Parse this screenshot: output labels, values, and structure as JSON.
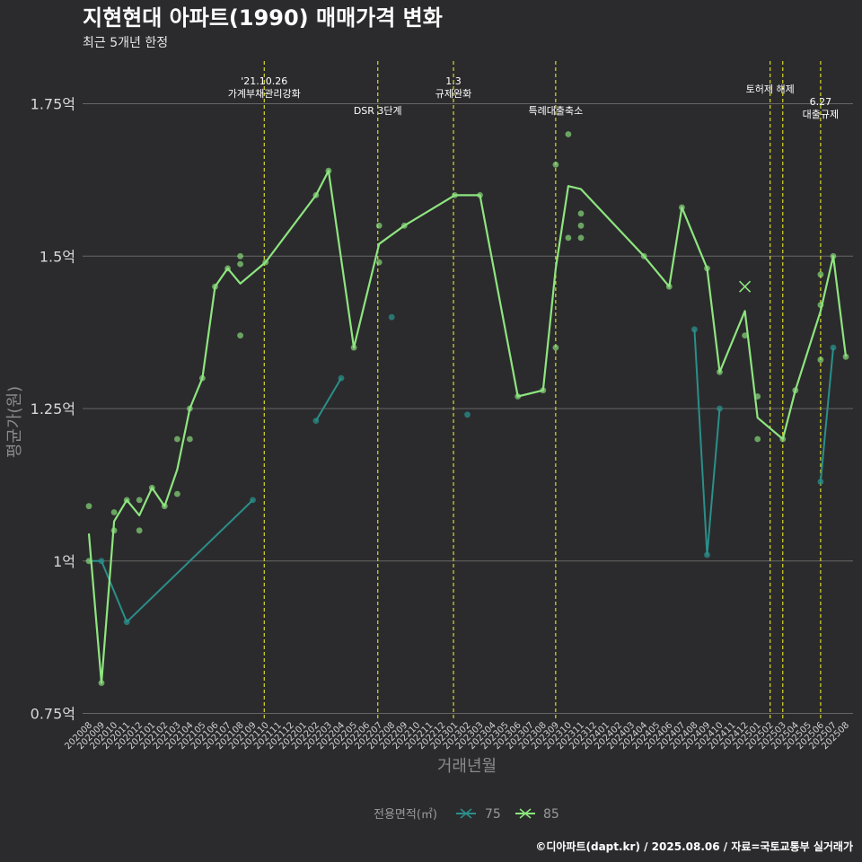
{
  "chart_data": {
    "type": "line",
    "title": "지현현대 아파트(1990) 매매가격 변화",
    "subtitle": "최근 5개년 한정",
    "xlabel": "거래년월",
    "ylabel": "평균가(원)",
    "ylim": [
      0.75,
      1.82
    ],
    "yticks": [
      0.75,
      1.0,
      1.25,
      1.5,
      1.75
    ],
    "ytick_labels": [
      "0.75억",
      "1억",
      "1.25억",
      "1.5억",
      "1.75억"
    ],
    "categories": [
      "202008",
      "202009",
      "202010",
      "202011",
      "202012",
      "202101",
      "202102",
      "202103",
      "202104",
      "202105",
      "202106",
      "202107",
      "202108",
      "202109",
      "202110",
      "202111",
      "202112",
      "202201",
      "202202",
      "202203",
      "202204",
      "202205",
      "202206",
      "202207",
      "202208",
      "202209",
      "202210",
      "202211",
      "202212",
      "202301",
      "202302",
      "202303",
      "202304",
      "202305",
      "202306",
      "202307",
      "202308",
      "202309",
      "202310",
      "202311",
      "202312",
      "202401",
      "202402",
      "202403",
      "202404",
      "202405",
      "202406",
      "202407",
      "202408",
      "202409",
      "202410",
      "202411",
      "202412",
      "202501",
      "202502",
      "202503",
      "202504",
      "202505",
      "202506",
      "202507",
      "202508"
    ],
    "x_tick_labels": [
      "202008",
      "202009",
      "202010",
      "202011",
      "202012",
      "202101",
      "202102",
      "202103",
      "202104",
      "202105",
      "202106",
      "202107",
      "202108",
      "202109",
      "202110",
      "202111",
      "202112",
      "202201",
      "202202",
      "202203",
      "202204",
      "202205",
      "202206",
      "202207",
      "202208",
      "202209",
      "202210",
      "202211",
      "202212",
      "202301",
      "202302",
      "202303",
      "202304",
      "202305",
      "202306",
      "202307",
      "202308",
      "202309",
      "202310",
      "202311",
      "202312",
      "202401",
      "202402",
      "202403",
      "202404",
      "202405",
      "202406",
      "202407",
      "202408",
      "202409",
      "202410",
      "202411",
      "202412",
      "202501",
      "202502",
      "202503",
      "202504",
      "202505",
      "202506",
      "202507",
      "202508"
    ],
    "series": [
      {
        "name": "75",
        "color": "#2a8f8a",
        "line": [
          [
            0,
            1.0
          ],
          [
            1,
            1.0
          ],
          [
            3,
            0.9
          ],
          [
            13,
            1.1
          ]
        ],
        "line2": [
          [
            18,
            1.23
          ],
          [
            20,
            1.3
          ]
        ],
        "line3": [
          [
            48,
            1.38
          ],
          [
            49,
            1.01
          ],
          [
            50,
            1.25
          ]
        ],
        "line4": [
          [
            58,
            1.13
          ],
          [
            59,
            1.35
          ]
        ],
        "points": [
          [
            1,
            1.0
          ],
          [
            3,
            0.9
          ],
          [
            13,
            1.1
          ],
          [
            18,
            1.23
          ],
          [
            20,
            1.3
          ],
          [
            24,
            1.4
          ],
          [
            30,
            1.24
          ],
          [
            48,
            1.38
          ],
          [
            49,
            1.01
          ],
          [
            50,
            1.25
          ],
          [
            58,
            1.13
          ],
          [
            59,
            1.35
          ]
        ]
      },
      {
        "name": "85",
        "color": "#8ee57f",
        "line": [
          [
            0,
            1.045
          ],
          [
            1,
            0.8
          ],
          [
            2,
            1.065
          ],
          [
            3,
            1.1
          ],
          [
            4,
            1.075
          ],
          [
            5,
            1.12
          ],
          [
            6,
            1.09
          ],
          [
            7,
            1.15
          ],
          [
            8,
            1.25
          ],
          [
            9,
            1.3
          ],
          [
            10,
            1.45
          ],
          [
            11,
            1.48
          ],
          [
            12,
            1.455
          ],
          [
            14,
            1.49
          ],
          [
            18,
            1.6
          ],
          [
            19,
            1.64
          ],
          [
            21,
            1.35
          ],
          [
            23,
            1.52
          ],
          [
            25,
            1.55
          ],
          [
            29,
            1.6
          ],
          [
            31,
            1.6
          ],
          [
            34,
            1.27
          ],
          [
            36,
            1.28
          ],
          [
            37,
            1.48
          ],
          [
            38,
            1.615
          ],
          [
            39,
            1.61
          ],
          [
            44,
            1.5
          ],
          [
            46,
            1.45
          ],
          [
            47,
            1.58
          ],
          [
            49,
            1.48
          ],
          [
            50,
            1.31
          ],
          [
            52,
            1.41
          ],
          [
            53,
            1.235
          ],
          [
            55,
            1.2
          ],
          [
            56,
            1.28
          ],
          [
            58,
            1.41
          ],
          [
            59,
            1.5
          ],
          [
            60,
            1.335
          ]
        ],
        "points": [
          [
            0,
            1.09
          ],
          [
            0,
            1.0
          ],
          [
            1,
            0.8
          ],
          [
            2,
            1.08
          ],
          [
            2,
            1.05
          ],
          [
            3,
            1.1
          ],
          [
            4,
            1.1
          ],
          [
            4,
            1.05
          ],
          [
            5,
            1.12
          ],
          [
            6,
            1.09
          ],
          [
            7,
            1.2
          ],
          [
            7,
            1.11
          ],
          [
            8,
            1.25
          ],
          [
            8,
            1.2
          ],
          [
            9,
            1.3
          ],
          [
            10,
            1.45
          ],
          [
            11,
            1.48
          ],
          [
            12,
            1.5
          ],
          [
            12,
            1.487
          ],
          [
            12,
            1.37
          ],
          [
            14,
            1.49
          ],
          [
            18,
            1.6
          ],
          [
            19,
            1.64
          ],
          [
            21,
            1.35
          ],
          [
            23,
            1.55
          ],
          [
            23,
            1.49
          ],
          [
            25,
            1.55
          ],
          [
            29,
            1.6
          ],
          [
            31,
            1.6
          ],
          [
            34,
            1.27
          ],
          [
            36,
            1.28
          ],
          [
            37,
            1.65
          ],
          [
            37,
            1.35
          ],
          [
            38,
            1.7
          ],
          [
            38,
            1.53
          ],
          [
            39,
            1.57
          ],
          [
            39,
            1.55
          ],
          [
            39,
            1.53
          ],
          [
            44,
            1.5
          ],
          [
            46,
            1.45
          ],
          [
            47,
            1.58
          ],
          [
            49,
            1.48
          ],
          [
            50,
            1.31
          ],
          [
            52,
            1.37
          ],
          [
            53,
            1.27
          ],
          [
            53,
            1.2
          ],
          [
            55,
            1.2
          ],
          [
            56,
            1.28
          ],
          [
            58,
            1.47
          ],
          [
            58,
            1.42
          ],
          [
            58,
            1.33
          ],
          [
            59,
            1.5
          ],
          [
            60,
            1.335
          ]
        ]
      }
    ],
    "cross_marker": [
      52,
      1.45
    ],
    "annotations": [
      {
        "x": 13.9,
        "lines": [
          "'21.10.26",
          "가계부채관리강화"
        ],
        "row": "top"
      },
      {
        "x": 22.9,
        "lines": [
          "DSR 3단계"
        ],
        "row": "bottom"
      },
      {
        "x": 28.9,
        "lines": [
          "1.3",
          "규제완화"
        ],
        "row": "top"
      },
      {
        "x": 37.0,
        "lines": [
          "특례대출축소"
        ],
        "row": "bottom"
      },
      {
        "x": 54.0,
        "lines": [
          "토허제 해제"
        ],
        "row": "mid"
      },
      {
        "x": 55.0,
        "lines": [],
        "row": "none"
      },
      {
        "x": 58.0,
        "lines": [
          "6.27",
          "대출규제"
        ],
        "row": "low"
      }
    ],
    "legend": {
      "title": "전용면적(㎡)",
      "items": [
        "75",
        "85"
      ],
      "position": "bottom"
    }
  },
  "caption": "©디아파트(dapt.kr) / 2025.08.06 / 자료=국토교통부 실거래가",
  "colors": {
    "background": "#2b2b2d",
    "grid": "#666666",
    "vline": "#d9d92a"
  }
}
